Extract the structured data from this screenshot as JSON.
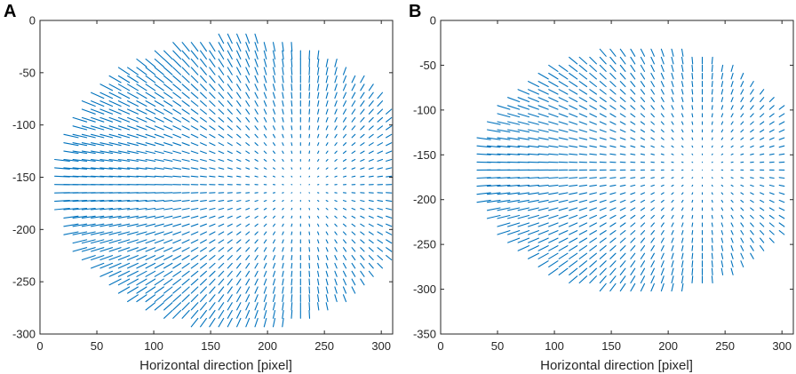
{
  "chart_data": [
    {
      "type": "quiver",
      "panel": "A",
      "xlabel": "Horizontal direction [pixel]",
      "ylabel": "",
      "xlim": [
        0,
        310
      ],
      "ylim": [
        -300,
        0
      ],
      "xticks": [
        0,
        50,
        100,
        150,
        200,
        250,
        300
      ],
      "xtick_labels": [
        "0",
        "50",
        "100",
        "150",
        "200",
        "250",
        "300"
      ],
      "yticks": [
        0,
        -50,
        -100,
        -150,
        -200,
        -250,
        -300
      ],
      "ytick_labels": [
        "0",
        "-50",
        "-100",
        "-150",
        "-200",
        "-250",
        "-300"
      ],
      "grid": false,
      "field_region": {
        "shape": "ellipse",
        "center": [
          172,
          -155
        ],
        "radii": [
          162,
          143
        ]
      },
      "field_center": [
        230,
        -160
      ],
      "grid_spacing": 8,
      "arrow_color": "#0072BD",
      "description": "Vector field of unit-length arrows converging toward a point near (230, -160); magnitude increases with distance from that point."
    },
    {
      "type": "quiver",
      "panel": "B",
      "xlabel": "Horizontal direction [pixel]",
      "ylabel": "",
      "xlim": [
        0,
        310
      ],
      "ylim": [
        -350,
        0
      ],
      "xticks": [
        0,
        50,
        100,
        150,
        200,
        250,
        300
      ],
      "xtick_labels": [
        "0",
        "50",
        "100",
        "150",
        "200",
        "250",
        "300"
      ],
      "yticks": [
        0,
        -50,
        -100,
        -150,
        -200,
        -250,
        -300,
        -350
      ],
      "ytick_labels": [
        "0",
        "-50",
        "-100",
        "-150",
        "-200",
        "-250",
        "-300",
        "-350"
      ],
      "grid": false,
      "field_region": {
        "shape": "ellipse",
        "center": [
          176,
          -167
        ],
        "radii": [
          150,
          140
        ]
      },
      "field_center": [
        230,
        -165
      ],
      "grid_spacing": 9,
      "arrow_color": "#0072BD",
      "description": "Vector field of arrows converging toward a point near (230, -165); magnitude increases with distance from that point."
    }
  ],
  "panels": [
    {
      "letter": "A"
    },
    {
      "letter": "B"
    }
  ]
}
